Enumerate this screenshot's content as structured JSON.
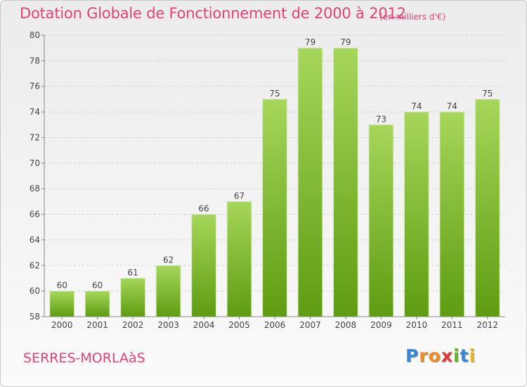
{
  "title": "Dotation Globale de Fonctionnement de 2000 à 2012",
  "subtitle": "(en milliers d'€)",
  "commune": "SERRES-MORLAàS",
  "logo": {
    "letters": [
      "P",
      "r",
      "o",
      "x",
      "i",
      "t",
      "i"
    ],
    "colors": [
      "#3b86d6",
      "#f08c1e",
      "#f08c1e",
      "#e03a3a",
      "#6cb52a",
      "#3b86d6",
      "#f0b41e"
    ]
  },
  "colors": {
    "bar_light": "#a6d65a",
    "bar_dark": "#5e9c12",
    "title": "#e0427a"
  },
  "chart_data": {
    "type": "bar",
    "title": "Dotation Globale de Fonctionnement de 2000 à 2012",
    "subtitle": "(en milliers d'€)",
    "categories": [
      "2000",
      "2001",
      "2002",
      "2003",
      "2004",
      "2005",
      "2006",
      "2007",
      "2008",
      "2009",
      "2010",
      "2011",
      "2012"
    ],
    "values": [
      60,
      60,
      61,
      62,
      66,
      67,
      75,
      79,
      79,
      73,
      74,
      74,
      75
    ],
    "ylim": [
      58,
      80
    ],
    "yticks": [
      58,
      60,
      62,
      64,
      66,
      68,
      70,
      72,
      74,
      76,
      78,
      80
    ],
    "grid": true,
    "data_labels": true
  }
}
